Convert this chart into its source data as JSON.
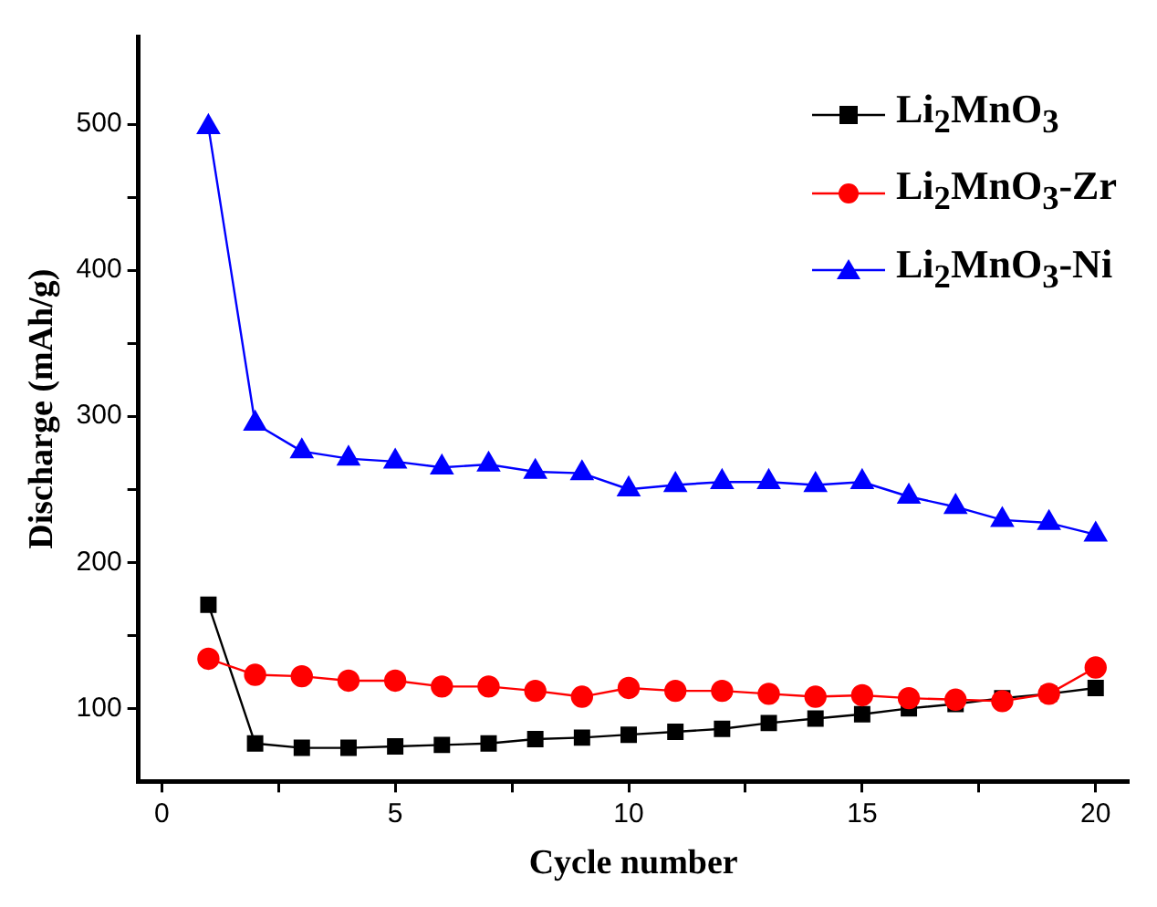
{
  "chart_data": {
    "type": "line",
    "xlabel": "Cycle number",
    "ylabel": "Discharge (mAh/g)",
    "x": [
      1,
      2,
      3,
      4,
      5,
      6,
      7,
      8,
      9,
      10,
      11,
      12,
      13,
      14,
      15,
      16,
      17,
      18,
      19,
      20
    ],
    "series": [
      {
        "name": "Li$_{2}$MnO$_{3}$",
        "color": "#000000",
        "marker": "square",
        "values": [
          171,
          76,
          73,
          73,
          74,
          75,
          76,
          79,
          80,
          82,
          84,
          86,
          90,
          93,
          96,
          100,
          103,
          107,
          110,
          114
        ]
      },
      {
        "name": "Li$_{2}$MnO$_{3}$-Zr",
        "color": "#ff0000",
        "marker": "circle",
        "values": [
          134,
          123,
          122,
          119,
          119,
          115,
          115,
          112,
          108,
          114,
          112,
          112,
          110,
          108,
          109,
          107,
          106,
          105,
          110,
          128
        ]
      },
      {
        "name": "Li$_{2}$MnO$_{3}$-Ni",
        "color": "#0000ff",
        "marker": "triangle",
        "values": [
          498,
          295,
          276,
          271,
          269,
          265,
          267,
          262,
          261,
          250,
          253,
          255,
          255,
          253,
          255,
          245,
          238,
          229,
          227,
          219
        ]
      }
    ],
    "xlim": [
      -0.5,
      20.7
    ],
    "xticks": [
      0,
      {
        "value": 2.5,
        "label": null
      },
      5,
      {
        "value": 7.5,
        "label": null
      },
      10,
      {
        "value": 12.5,
        "label": null
      },
      15,
      {
        "value": 17.5,
        "label": null
      },
      20
    ],
    "ylim": [
      50,
      560
    ],
    "yticks": [
      100,
      {
        "value": 150,
        "label": null
      },
      200,
      {
        "value": 250,
        "label": null
      },
      300,
      {
        "value": 350,
        "label": null
      },
      400,
      {
        "value": 450,
        "label": null
      },
      500
    ],
    "grid": false,
    "legend": "top right",
    "line_style": "solid"
  }
}
